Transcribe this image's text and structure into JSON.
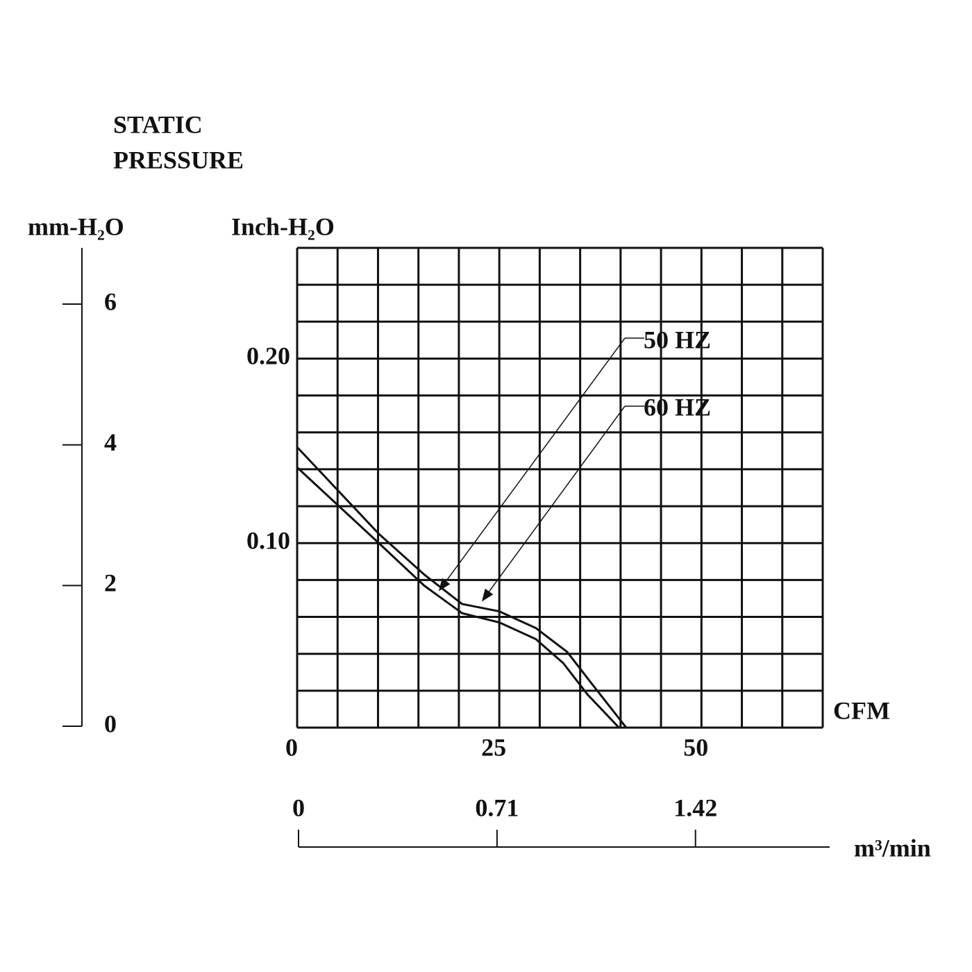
{
  "chart_data": {
    "type": "line",
    "title_lines": [
      "STATIC",
      "PRESSURE"
    ],
    "y_label": "Inch-H₂O",
    "y2_label": "mm-H₂O",
    "x_label": "CFM",
    "x2_label": "m³/min",
    "xlim": [
      0,
      65
    ],
    "xticks": [
      0,
      25,
      50
    ],
    "xgrid": [
      0,
      5,
      10,
      15,
      20,
      25,
      30,
      35,
      40,
      45,
      50,
      55,
      60,
      65
    ],
    "ylim": [
      0,
      0.26
    ],
    "yticks": [
      {
        "value": 0.1,
        "label": "0.10"
      },
      {
        "value": 0.2,
        "label": "0.20"
      }
    ],
    "ygrid": [
      0,
      0.02,
      0.04,
      0.06,
      0.08,
      0.1,
      0.12,
      0.14,
      0.16,
      0.18,
      0.2,
      0.22,
      0.24,
      0.26
    ],
    "y2lim": [
      0,
      6.8
    ],
    "y2ticks": [
      0,
      2,
      4,
      6
    ],
    "x2lim": [
      0,
      1.9
    ],
    "x2ticks": [
      0,
      0.71,
      1.42
    ],
    "grid": true,
    "series": [
      {
        "name": "50 HZ",
        "color": "#111111",
        "x": [
          0,
          10.1,
          15.7,
          20.4,
          25,
          29.5,
          32.9,
          35.9,
          39.8
        ],
        "values": [
          0.141,
          0.1,
          0.077,
          0.062,
          0.057,
          0.048,
          0.035,
          0.018,
          0
        ]
      },
      {
        "name": "60 HZ",
        "color": "#111111",
        "x": [
          0,
          10.1,
          15.7,
          20.4,
          25,
          29.5,
          33.4,
          36.4,
          40.7
        ],
        "values": [
          0.152,
          0.105,
          0.083,
          0.067,
          0.063,
          0.054,
          0.041,
          0.024,
          0
        ]
      }
    ]
  }
}
